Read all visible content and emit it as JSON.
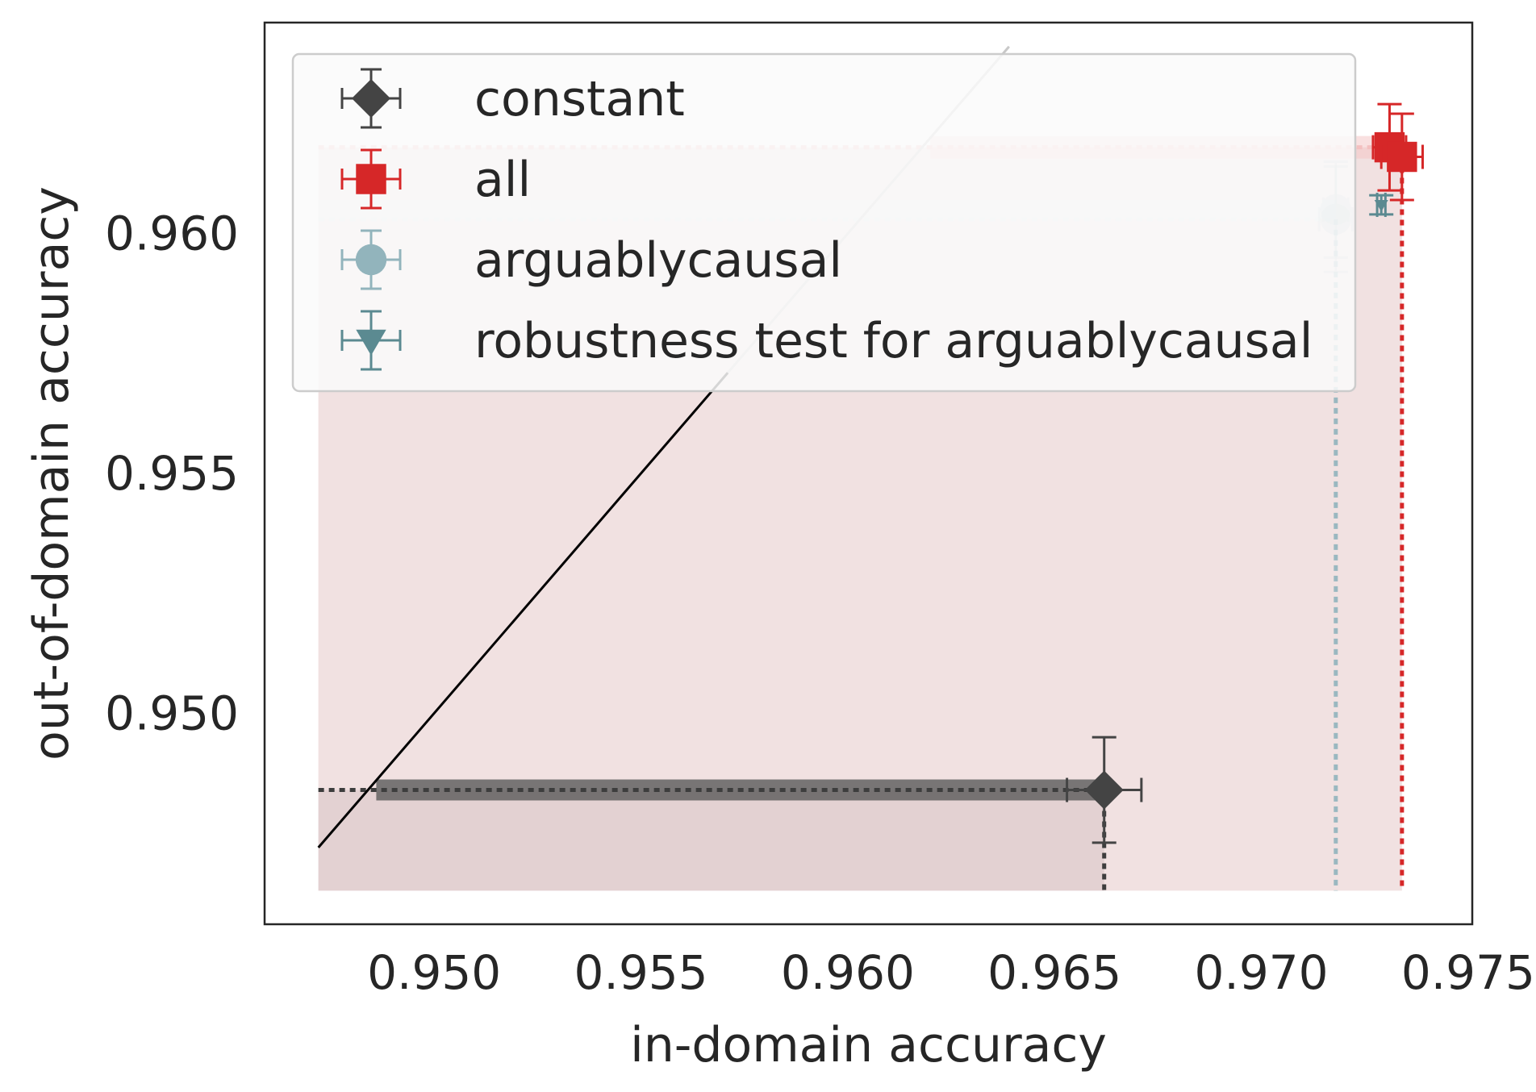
{
  "chart_data": {
    "type": "scatter",
    "xlabel": "in-domain accuracy",
    "ylabel": "out-of-domain accuracy",
    "xlim": [
      0.9459,
      0.9751
    ],
    "ylim": [
      0.9456,
      0.9644
    ],
    "xticks": [
      0.95,
      0.955,
      0.96,
      0.965,
      0.97,
      0.975
    ],
    "xtick_labels": [
      "0.950",
      "0.955",
      "0.960",
      "0.965",
      "0.970",
      "0.975"
    ],
    "yticks": [
      0.95,
      0.955,
      0.96
    ],
    "ytick_labels": [
      "0.950",
      "0.955",
      "0.960"
    ],
    "grid": false,
    "legend_position": "top-left",
    "diagonal_line": [
      [
        0.9472,
        0.9472
      ],
      [
        0.9639,
        0.9639
      ]
    ],
    "series": [
      {
        "name": "constant",
        "marker": "diamond",
        "color": "#444444",
        "points": [
          {
            "x": 0.9662,
            "y": 0.9484,
            "xerr": 0.0009,
            "yerr": 0.0011
          }
        ]
      },
      {
        "name": "all",
        "marker": "square",
        "color": "#d62728",
        "points": [
          {
            "x": 0.9731,
            "y": 0.9618,
            "xerr": 0.0004,
            "yerr": 0.0009
          },
          {
            "x": 0.9734,
            "y": 0.9616,
            "xerr": 0.0005,
            "yerr": 0.0009
          }
        ]
      },
      {
        "name": "arguablycausal",
        "marker": "circle",
        "color": "#92b4bc",
        "points": [
          {
            "x": 0.9718,
            "y": 0.9603,
            "xerr": 0.0004,
            "yerr": 0.0011
          },
          {
            "x": 0.9718,
            "y": 0.9605,
            "xerr": 0.0003,
            "yerr": 0.001
          }
        ]
      },
      {
        "name": "robustness test for arguablycausal",
        "marker": "triangle-down",
        "color": "#5b8a91",
        "points": [
          {
            "x": 0.9729,
            "y": 0.9606,
            "xerr": 0.0001,
            "yerr": 0.0002
          }
        ]
      }
    ]
  }
}
